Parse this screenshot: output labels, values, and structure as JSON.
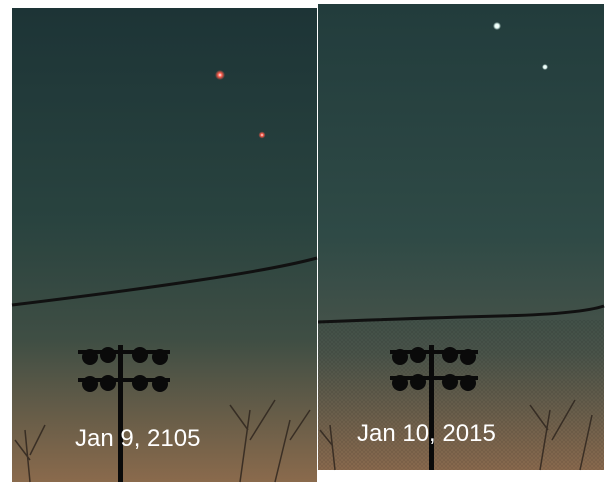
{
  "panels": [
    {
      "caption": "Jan 9, 2105"
    },
    {
      "caption": "Jan 10, 2015"
    }
  ]
}
